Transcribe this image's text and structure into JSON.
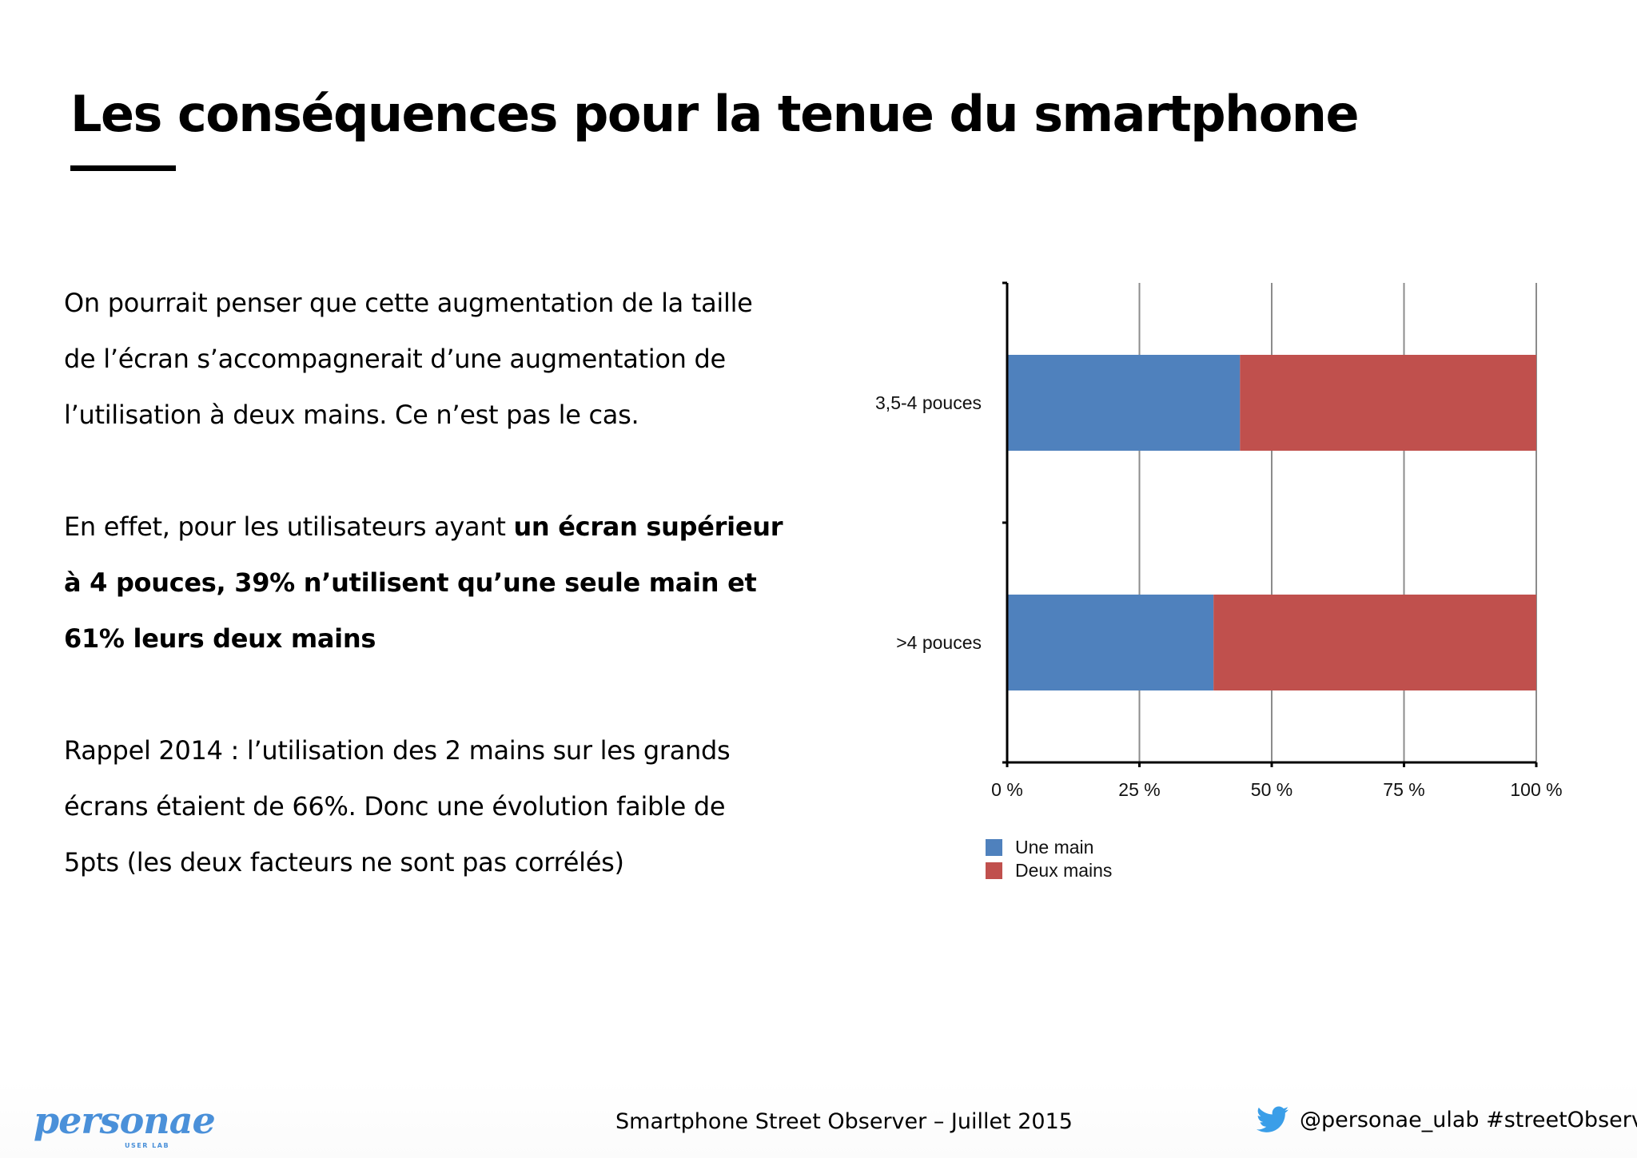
{
  "slide": {
    "title": "Les conséquences pour la tenue du smartphone"
  },
  "body": {
    "p1": "On pourrait penser que cette augmentation de la taille de l’écran s’accompagnerait d’une augmentation de l’utilisation à deux mains. Ce n’est pas le cas.",
    "p2_lead": "En effet, pour les utilisateurs ayant ",
    "p2_bold": "un écran supérieur à 4 pouces, 39% n’utilisent qu’une seule main et 61% leurs deux mains",
    "p3": "Rappel 2014 : l’utilisation des 2 mains sur les grands écrans étaient de 66%. Donc une évolution faible de 5pts (les deux facteurs ne sont pas corrélés)"
  },
  "chart_data": {
    "type": "bar",
    "orientation": "horizontal",
    "stacked": true,
    "normalized_percent": true,
    "categories": [
      "3,5-4 pouces",
      ">4 pouces"
    ],
    "series": [
      {
        "name": "Une main",
        "values": [
          44,
          39
        ],
        "color": "#4f81bd"
      },
      {
        "name": "Deux mains",
        "values": [
          56,
          61
        ],
        "color": "#c0504d"
      }
    ],
    "xlim": [
      0,
      100
    ],
    "xticks": [
      0,
      25,
      50,
      75,
      100
    ],
    "xtick_labels": [
      "0 %",
      "25 %",
      "50 %",
      "75 %",
      "100 %"
    ],
    "grid": true,
    "legend_position": "bottom-left",
    "title": "",
    "xlabel": "",
    "ylabel": ""
  },
  "footer": {
    "center_text": "Smartphone Street Observer – Juillet 2015",
    "right_text": "@personae_ulab #streetObserver",
    "logo_text": "personae",
    "logo_subtext": "USER LAB",
    "logo_color": "#4a90d9",
    "twitter_color": "#3a9ee8",
    "twitter_icon": "twitter-bird-icon"
  }
}
